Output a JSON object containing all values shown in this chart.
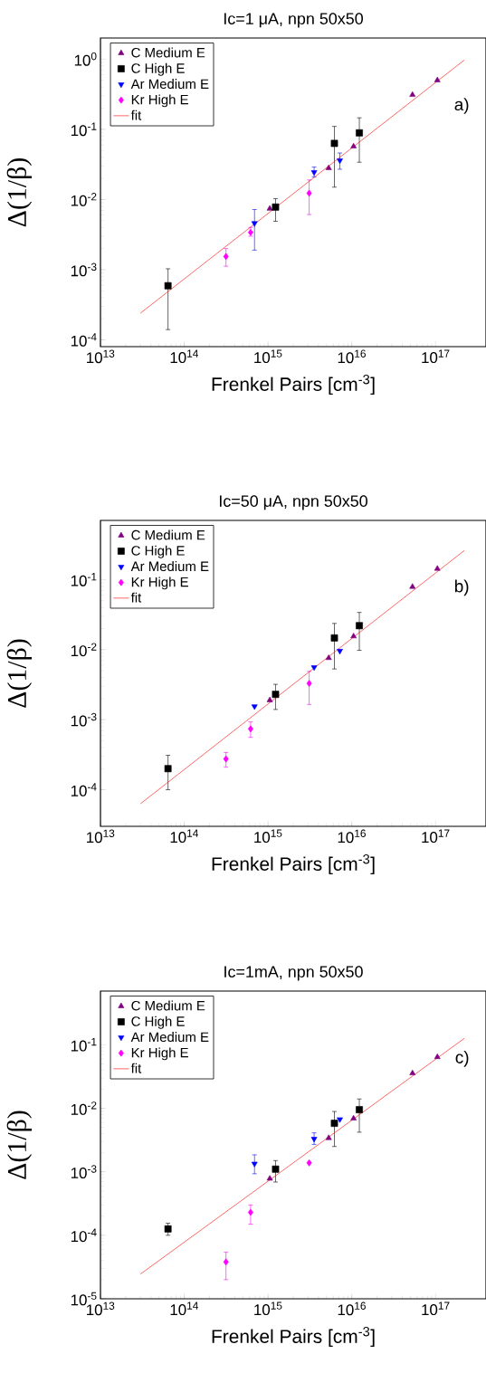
{
  "chart_data": [
    {
      "type": "scatter",
      "title": "Ic=1 μA, npn 50x50",
      "xlabel": "Frenkel Pairs [cm$^{-3}$]",
      "ylabel": "Δ(1/β)",
      "log": "xy",
      "legend": "top left",
      "annotations": [
        "a)"
      ],
      "xlim": [
        10000000000000.0,
        4e+17
      ],
      "ylim": [
        8e-05,
        2
      ],
      "xticks": [
        {
          "value": 10000000000000.0,
          "label": "10$^{13}$"
        },
        {
          "value": 100000000000000.0,
          "label": "10$^{14}$"
        },
        {
          "value": 1000000000000000.0,
          "label": "10$^{15}$"
        },
        {
          "value": 1e+16,
          "label": "10$^{16}$"
        },
        {
          "value": 1e+17,
          "label": "10$^{17}$"
        }
      ],
      "yticks": [
        {
          "value": 0.0001,
          "label": "10$^{-4}$"
        },
        {
          "value": 0.001,
          "label": "10$^{-3}$"
        },
        {
          "value": 0.01,
          "label": "10$^{-2}$"
        },
        {
          "value": 0.1,
          "label": "10$^{-1}$"
        },
        {
          "value": 1,
          "label": "10$^{0}$"
        }
      ],
      "series": [
        {
          "name": "C Medium E",
          "color": "#800080",
          "marker": "triangle",
          "x": [
            1050000000000000.0,
            5300000000000000.0,
            1.05e+16,
            5.3e+16,
            1.05e+17
          ],
          "values": [
            0.0074,
            0.028,
            0.057,
            0.31,
            0.5
          ]
        },
        {
          "name": "C High E",
          "color": "#000000",
          "marker": "square",
          "x": [
            64000000000000.0,
            1230000000000000.0,
            6200000000000000.0,
            1.23e+16
          ],
          "values": [
            0.00059,
            0.0078,
            0.063,
            0.089
          ],
          "errors": [
            [
              0.00014,
              0.00103
            ],
            [
              0.0049,
              0.0103
            ],
            [
              0.015,
              0.11
            ],
            [
              0.034,
              0.146
            ]
          ]
        },
        {
          "name": "Ar Medium E",
          "color": "#0000ff",
          "marker": "triangle-down",
          "x": [
            690000000000000.0,
            3550000000000000.0,
            7200000000000000.0
          ],
          "values": [
            0.0046,
            0.0245,
            0.036
          ],
          "errors": [
            [
              0.0019,
              0.0072
            ],
            [
              0.021,
              0.029
            ],
            [
              0.027,
              0.046
            ]
          ]
        },
        {
          "name": "Kr High E",
          "color": "#ff00ff",
          "marker": "diamond",
          "x": [
            315000000000000.0,
            620000000000000.0,
            3100000000000000.0
          ],
          "values": [
            0.00154,
            0.0034,
            0.0123
          ],
          "errors": [
            [
              0.00112,
              0.002
            ],
            [
              0.003,
              0.004
            ],
            [
              0.0061,
              0.019
            ]
          ]
        },
        {
          "name": "fit",
          "type": "line",
          "color": "#ff0000",
          "marker": "none",
          "x": [
            30000000000000.0,
            2.2e+17
          ],
          "values": [
            0.00024,
            0.97
          ]
        }
      ]
    },
    {
      "type": "scatter",
      "title": "Ic=50 μA, npn 50x50",
      "xlabel": "Frenkel Pairs [cm$^{-3}$]",
      "ylabel": "Δ(1/β)",
      "log": "xy",
      "legend": "top left",
      "annotations": [
        "b)"
      ],
      "xlim": [
        10000000000000.0,
        4e+17
      ],
      "ylim": [
        3e-05,
        0.7
      ],
      "xticks": [
        {
          "value": 10000000000000.0,
          "label": "10$^{13}$"
        },
        {
          "value": 100000000000000.0,
          "label": "10$^{14}$"
        },
        {
          "value": 1000000000000000.0,
          "label": "10$^{15}$"
        },
        {
          "value": 1e+16,
          "label": "10$^{16}$"
        },
        {
          "value": 1e+17,
          "label": "10$^{17}$"
        }
      ],
      "yticks": [
        {
          "value": 0.0001,
          "label": "10$^{-4}$"
        },
        {
          "value": 0.001,
          "label": "10$^{-3}$"
        },
        {
          "value": 0.01,
          "label": "10$^{-2}$"
        },
        {
          "value": 0.1,
          "label": "10$^{-1}$"
        }
      ],
      "series": [
        {
          "name": "C Medium E",
          "color": "#800080",
          "marker": "triangle",
          "x": [
            1050000000000000.0,
            5300000000000000.0,
            1.05e+16,
            5.3e+16,
            1.05e+17
          ],
          "values": [
            0.0019,
            0.0076,
            0.0155,
            0.079,
            0.143
          ]
        },
        {
          "name": "C High E",
          "color": "#000000",
          "marker": "square",
          "x": [
            64000000000000.0,
            1230000000000000.0,
            6200000000000000.0,
            1.23e+16
          ],
          "values": [
            0.0002,
            0.0023,
            0.0147,
            0.022
          ],
          "errors": [
            [
              0.0001,
              0.00031
            ],
            [
              0.0014,
              0.0032
            ],
            [
              0.0053,
              0.0237
            ],
            [
              0.0098,
              0.034
            ]
          ]
        },
        {
          "name": "Ar Medium E",
          "color": "#0000ff",
          "marker": "triangle-down",
          "x": [
            690000000000000.0,
            3550000000000000.0,
            7200000000000000.0
          ],
          "values": [
            0.00155,
            0.0056,
            0.0096
          ]
        },
        {
          "name": "Kr High E",
          "color": "#ff00ff",
          "marker": "diamond",
          "x": [
            315000000000000.0,
            620000000000000.0,
            3100000000000000.0
          ],
          "values": [
            0.000275,
            0.00074,
            0.0033
          ],
          "errors": [
            [
              0.00021,
              0.00034
            ],
            [
              0.00056,
              0.00093
            ],
            [
              0.00165,
              0.0049
            ]
          ]
        },
        {
          "name": "fit",
          "type": "line",
          "color": "#ff0000",
          "marker": "none",
          "x": [
            30000000000000.0,
            2.2e+17
          ],
          "values": [
            6.3e-05,
            0.26
          ]
        }
      ]
    },
    {
      "type": "scatter",
      "title": "Ic=1mA, npn 50x50",
      "xlabel": "Frenkel Pairs [cm$^{-3}$]",
      "ylabel": "Δ(1/β)",
      "log": "xy",
      "legend": "top left",
      "annotations": [
        "c)"
      ],
      "xlim": [
        10000000000000.0,
        4e+17
      ],
      "ylim": [
        1e-05,
        0.7
      ],
      "xticks": [
        {
          "value": 10000000000000.0,
          "label": "10$^{13}$"
        },
        {
          "value": 100000000000000.0,
          "label": "10$^{14}$"
        },
        {
          "value": 1000000000000000.0,
          "label": "10$^{15}$"
        },
        {
          "value": 1e+16,
          "label": "10$^{16}$"
        },
        {
          "value": 1e+17,
          "label": "10$^{17}$"
        }
      ],
      "yticks": [
        {
          "value": 1e-05,
          "label": "10$^{-5}$"
        },
        {
          "value": 0.0001,
          "label": "10$^{-4}$"
        },
        {
          "value": 0.001,
          "label": "10$^{-3}$"
        },
        {
          "value": 0.01,
          "label": "10$^{-2}$"
        },
        {
          "value": 0.1,
          "label": "10$^{-1}$"
        }
      ],
      "series": [
        {
          "name": "C Medium E",
          "color": "#800080",
          "marker": "triangle",
          "x": [
            1050000000000000.0,
            5300000000000000.0,
            1.05e+16,
            5.3e+16,
            1.05e+17
          ],
          "values": [
            0.00078,
            0.0034,
            0.0069,
            0.0356,
            0.064
          ]
        },
        {
          "name": "C High E",
          "color": "#000000",
          "marker": "square",
          "x": [
            64000000000000.0,
            1230000000000000.0,
            6200000000000000.0,
            1.23e+16
          ],
          "values": [
            0.000126,
            0.0011,
            0.0058,
            0.0095
          ],
          "errors": [
            [
              0.0001,
              0.000155
            ],
            [
              0.00069,
              0.0015
            ],
            [
              0.0025,
              0.0089
            ],
            [
              0.0042,
              0.014
            ]
          ]
        },
        {
          "name": "Ar Medium E",
          "color": "#0000ff",
          "marker": "triangle-down",
          "x": [
            690000000000000.0,
            3550000000000000.0,
            7200000000000000.0
          ],
          "values": [
            0.00134,
            0.0033,
            0.0067
          ],
          "errors": [
            [
              0.00093,
              0.00185
            ],
            [
              0.0027,
              0.0041
            ],
            null
          ]
        },
        {
          "name": "Kr High E",
          "color": "#ff00ff",
          "marker": "diamond",
          "x": [
            315000000000000.0,
            620000000000000.0,
            3100000000000000.0
          ],
          "values": [
            3.8e-05,
            0.00023,
            0.00138
          ],
          "errors": [
            [
              2e-05,
              5.4e-05
            ],
            [
              0.00015,
              0.0003
            ],
            null
          ]
        },
        {
          "name": "fit",
          "type": "line",
          "color": "#ff0000",
          "marker": "none",
          "x": [
            30000000000000.0,
            2.2e+17
          ],
          "values": [
            2.45e-05,
            0.126
          ]
        }
      ]
    }
  ]
}
